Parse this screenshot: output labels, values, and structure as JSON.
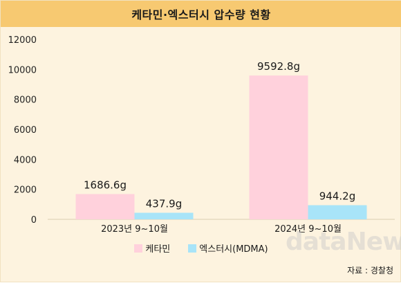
{
  "title": "케타민·엑스터시 압수량 현황",
  "source": "자료 : 경찰청",
  "watermark": "dataNews",
  "colors": {
    "series1": "#ffd1dc",
    "series2": "#a8e4f8",
    "title_bg": "#f7c971",
    "panel_bg": "#fdf3df"
  },
  "chart_data": {
    "type": "bar",
    "title": "케타민·엑스터시 압수량 현황",
    "xlabel": "",
    "ylabel": "",
    "ylim": [
      0,
      12000
    ],
    "yticks": [
      0,
      2000,
      4000,
      6000,
      8000,
      10000,
      12000
    ],
    "categories": [
      "2023년 9~10월",
      "2024년 9~10월"
    ],
    "series": [
      {
        "name": "케타민",
        "values": [
          1686.6,
          9592.8
        ],
        "labels": [
          "1686.6g",
          "9592.8g"
        ],
        "color": "#ffd1dc"
      },
      {
        "name": "엑스터시(MDMA)",
        "values": [
          437.9,
          944.2
        ],
        "labels": [
          "437.9g",
          "944.2g"
        ],
        "color": "#a8e4f8"
      }
    ],
    "grid": false,
    "legend": "bottom"
  }
}
